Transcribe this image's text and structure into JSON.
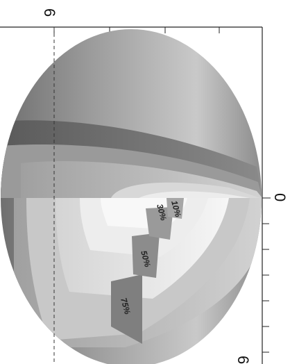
{
  "figure": {
    "top_axis_label": "6",
    "right_axis_label_zero": "0",
    "right_axis_label_bottom": "6",
    "labels": [
      {
        "id": "p10",
        "text": "10%"
      },
      {
        "id": "p30",
        "text": "30%"
      },
      {
        "id": "p50",
        "text": "50%"
      },
      {
        "id": "p75",
        "text": "75%"
      }
    ],
    "colors": {
      "outer_shell": "#9a9a9a",
      "dark_band": "#6e6e6e",
      "mid_shell": "#b4b4b4",
      "inner_light": "#e6e6e6",
      "core": "#f4f4f4",
      "wedge_dark": "#808080"
    }
  }
}
